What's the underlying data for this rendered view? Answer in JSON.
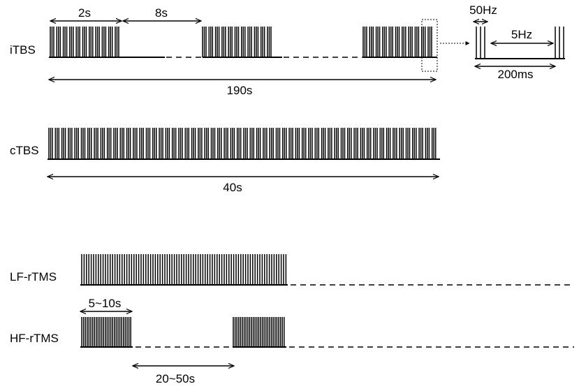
{
  "protocols": {
    "itbs": {
      "label": "iTBS",
      "train_duration": "2s",
      "interval": "8s",
      "total": "190s"
    },
    "ctbs": {
      "label": "cTBS",
      "total": "40s"
    },
    "lf_rtms": {
      "label": "LF-rTMS"
    },
    "hf_rtms": {
      "label": "HF-rTMS",
      "train_duration": "5~10s",
      "interval": "20~50s"
    }
  },
  "burst_detail": {
    "intra_burst_frequency": "50Hz",
    "inter_burst_frequency": "5Hz",
    "cycle": "200ms"
  }
}
